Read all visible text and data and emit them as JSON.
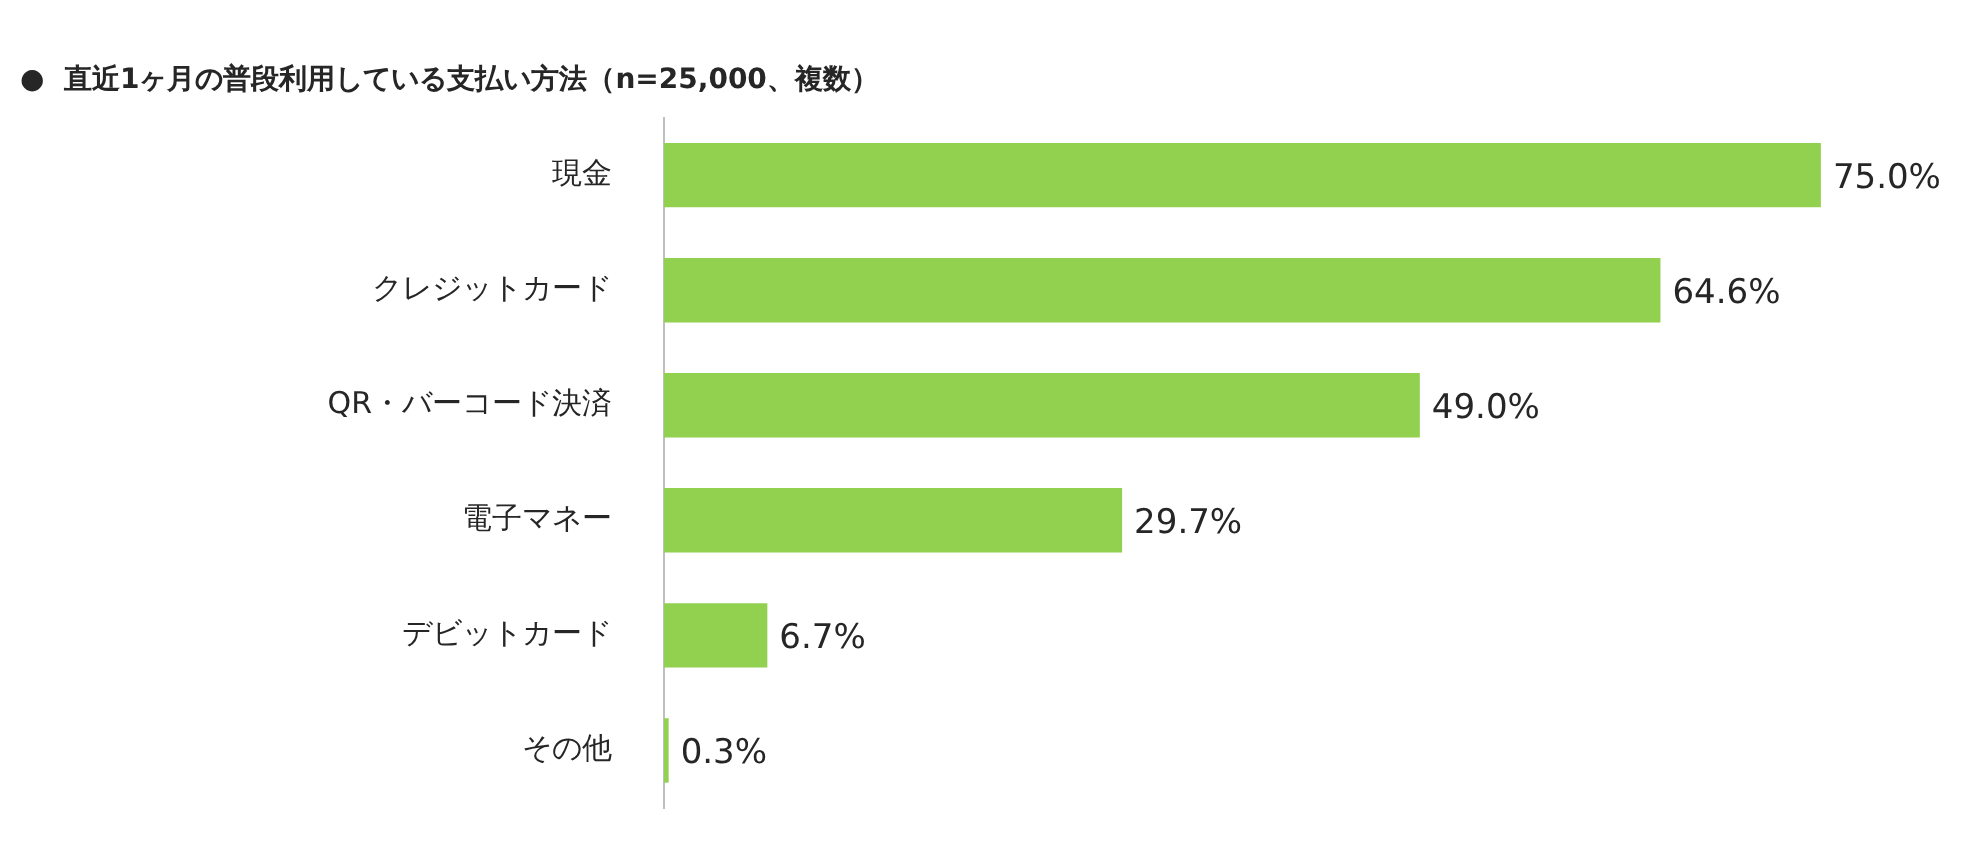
{
  "chart_data": {
    "type": "bar",
    "orientation": "horizontal",
    "title": "●  直近1ヶ月の普段利用している支払い方法（n=25,000、複数）",
    "categories": [
      "現金",
      "クレジットカード",
      "QR・バーコード決済",
      "電子マネー",
      "デビットカード",
      "その他"
    ],
    "values": [
      75.0,
      64.6,
      49.0,
      29.7,
      6.7,
      0.3
    ],
    "value_labels": [
      "75.0%",
      "64.6%",
      "49.0%",
      "29.7%",
      "6.7%",
      "0.3%"
    ],
    "color": "#92d050",
    "tick_labels": "y",
    "grid": false,
    "legend": false
  }
}
